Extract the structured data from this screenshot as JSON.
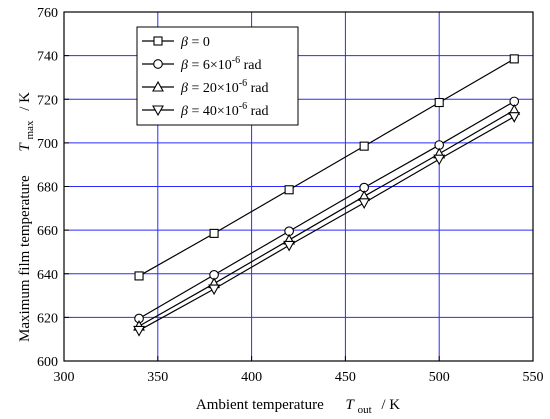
{
  "chart_data": {
    "type": "line",
    "x_axis": {
      "label_main": "Ambient temperature",
      "label_var": "T",
      "label_sub": "out",
      "label_unit": "/  K",
      "range": [
        300,
        550
      ],
      "ticks": [
        300,
        350,
        400,
        450,
        500,
        550
      ],
      "tick_labels": [
        "300",
        "350",
        "400",
        "450",
        "500",
        "550"
      ]
    },
    "y_axis": {
      "label_main": "Maximum film temperature",
      "label_var": "T",
      "label_sub": "max",
      "label_unit": "/  K",
      "range": [
        600,
        760
      ],
      "ticks": [
        600,
        620,
        640,
        660,
        680,
        700,
        720,
        740,
        760
      ],
      "tick_labels": [
        "600",
        "620",
        "640",
        "660",
        "680",
        "700",
        "720",
        "740",
        "760"
      ]
    },
    "grid": true,
    "legend_position": "top-left",
    "x": [
      340,
      380,
      420,
      460,
      500,
      540
    ],
    "series": [
      {
        "legend": {
          "sym": "β",
          "eq": " = 0",
          "sup": "",
          "tail": ""
        },
        "marker": "square",
        "values": [
          639,
          658.5,
          678.5,
          698.5,
          718.5,
          738.5
        ]
      },
      {
        "legend": {
          "sym": "β",
          "eq": " =   6×10",
          "sup": "-6",
          "tail": " rad"
        },
        "marker": "circle",
        "values": [
          619.5,
          639.5,
          659.5,
          679.5,
          699,
          719
        ]
      },
      {
        "legend": {
          "sym": "β",
          "eq": " = 20×10",
          "sup": "-6",
          "tail": " rad"
        },
        "marker": "triangle-up",
        "values": [
          616,
          635.5,
          655.5,
          675.5,
          695,
          715
        ]
      },
      {
        "legend": {
          "sym": "β",
          "eq": " = 40×10",
          "sup": "-6",
          "tail": " rad"
        },
        "marker": "triangle-down",
        "values": [
          614,
          633,
          653,
          672.5,
          692.5,
          712
        ]
      }
    ],
    "colors": {
      "grid": "#2b2bff",
      "line": "#000000",
      "marker_fill": "#ffffff"
    }
  }
}
